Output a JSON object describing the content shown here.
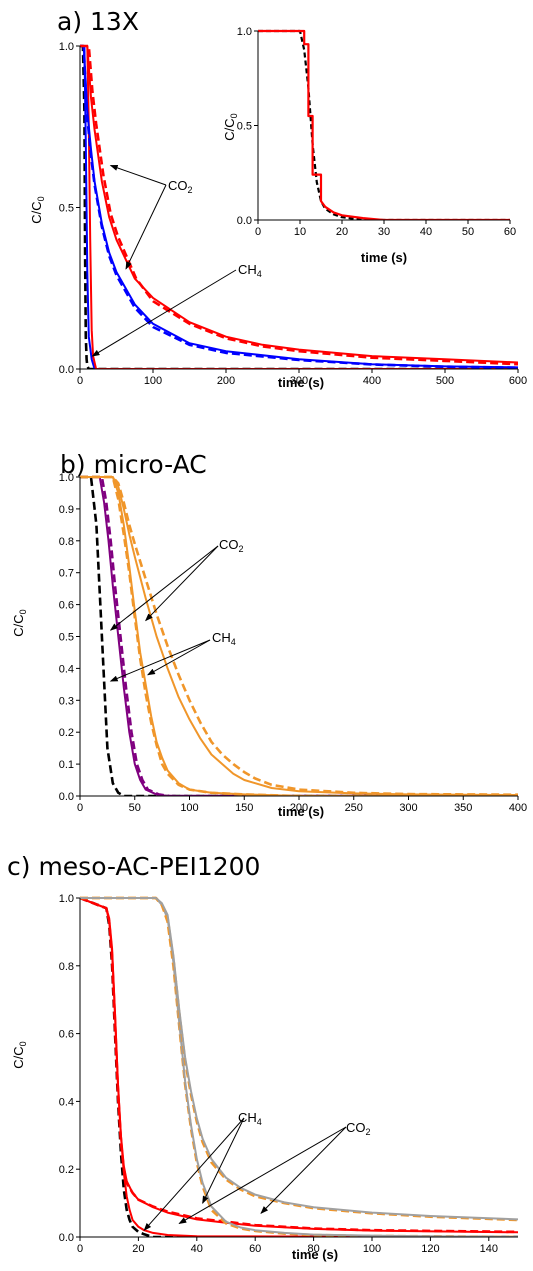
{
  "chart_data": [
    {
      "id": "a",
      "type": "line",
      "title": "a) 13X",
      "xlabel": "time (s)",
      "ylabel": "C/C0",
      "xlim": [
        0,
        600
      ],
      "ylim": [
        0,
        1.0
      ],
      "xticks": [
        0,
        100,
        200,
        300,
        400,
        500,
        600
      ],
      "yticks": [
        0.0,
        0.5,
        1.0
      ],
      "tick_decimals": 1,
      "grid": false,
      "annotations": [
        {
          "label": "CO",
          "sub": "2",
          "arrows_to": [
            [
              42,
              0.63
            ],
            [
              63,
              0.31
            ]
          ]
        },
        {
          "label": "CH",
          "sub": "4",
          "arrows_to": [
            [
              17,
              0.04
            ]
          ]
        }
      ],
      "series": [
        {
          "color": "#000000",
          "dash": true,
          "x": [
            0,
            4,
            6,
            7,
            8,
            9,
            10,
            12,
            16,
            600
          ],
          "y": [
            1.0,
            1.0,
            0.8,
            0.35,
            0.1,
            0.03,
            0.01,
            0.0,
            0.0,
            0.0
          ]
        },
        {
          "color": "#0000ff",
          "dash": false,
          "x": [
            0,
            6,
            8,
            10,
            12,
            16,
            20,
            600
          ],
          "y": [
            1.0,
            1.0,
            0.7,
            0.3,
            0.1,
            0.03,
            0.0,
            0.0
          ]
        },
        {
          "color": "#ff0000",
          "dash": false,
          "x": [
            0,
            10,
            12,
            14,
            16,
            18,
            22,
            600
          ],
          "y": [
            1.0,
            1.0,
            0.75,
            0.4,
            0.12,
            0.04,
            0.0,
            0.0
          ]
        },
        {
          "color": "#0000ff",
          "dash": false,
          "x": [
            0,
            5,
            8,
            10,
            15,
            20,
            30,
            40,
            50,
            75,
            100,
            150,
            200,
            300,
            400,
            500,
            600
          ],
          "y": [
            1.0,
            1.0,
            0.88,
            0.8,
            0.68,
            0.58,
            0.45,
            0.36,
            0.3,
            0.2,
            0.14,
            0.08,
            0.055,
            0.03,
            0.015,
            0.008,
            0.005
          ]
        },
        {
          "color": "#0000ff",
          "dash": true,
          "x": [
            0,
            5,
            8,
            10,
            15,
            20,
            30,
            40,
            50,
            75,
            100,
            150,
            200,
            300,
            400,
            500,
            600
          ],
          "y": [
            1.0,
            1.0,
            0.86,
            0.78,
            0.66,
            0.57,
            0.44,
            0.35,
            0.29,
            0.19,
            0.13,
            0.075,
            0.05,
            0.028,
            0.014,
            0.007,
            0.004
          ]
        },
        {
          "color": "#ff0000",
          "dash": false,
          "x": [
            0,
            10,
            15,
            20,
            30,
            40,
            50,
            75,
            100,
            150,
            200,
            250,
            300,
            400,
            500,
            600
          ],
          "y": [
            1.0,
            1.0,
            0.84,
            0.74,
            0.58,
            0.47,
            0.4,
            0.28,
            0.22,
            0.145,
            0.1,
            0.075,
            0.06,
            0.04,
            0.03,
            0.02
          ]
        },
        {
          "color": "#ff0000",
          "dash": true,
          "x": [
            0,
            12,
            17,
            22,
            32,
            42,
            52,
            77,
            100,
            150,
            200,
            250,
            300,
            400,
            500,
            600
          ],
          "y": [
            1.0,
            1.0,
            0.86,
            0.76,
            0.6,
            0.48,
            0.41,
            0.28,
            0.21,
            0.14,
            0.095,
            0.07,
            0.055,
            0.035,
            0.025,
            0.015
          ]
        }
      ]
    },
    {
      "id": "a-inset",
      "type": "line",
      "title": "",
      "xlabel": "time (s)",
      "ylabel": "C/C0",
      "xlim": [
        0,
        60
      ],
      "ylim": [
        0,
        1.0
      ],
      "xticks": [
        0,
        10,
        20,
        30,
        40,
        50,
        60
      ],
      "yticks": [
        0.0,
        0.5,
        1.0
      ],
      "tick_decimals": 1,
      "grid": false,
      "series": [
        {
          "color": "#000000",
          "dash": true,
          "x": [
            0,
            10,
            11,
            12,
            13,
            14,
            15,
            16,
            18,
            20,
            25,
            60
          ],
          "y": [
            1.0,
            1.0,
            0.9,
            0.7,
            0.4,
            0.2,
            0.1,
            0.06,
            0.03,
            0.015,
            0.0,
            0.0
          ]
        },
        {
          "color": "#ff0000",
          "dash": false,
          "x": [
            0,
            11,
            11,
            12,
            12,
            13,
            13,
            15,
            15,
            16,
            18,
            20,
            25,
            30,
            60
          ],
          "y": [
            1.0,
            1.0,
            0.93,
            0.93,
            0.55,
            0.55,
            0.24,
            0.24,
            0.1,
            0.07,
            0.04,
            0.025,
            0.01,
            0.0,
            0.0
          ]
        }
      ]
    },
    {
      "id": "b",
      "type": "line",
      "title": "b) micro-AC",
      "xlabel": "time (s)",
      "ylabel": "C/C0",
      "xlim": [
        0,
        400
      ],
      "ylim": [
        0,
        1.0
      ],
      "xticks": [
        0,
        50,
        100,
        150,
        200,
        250,
        300,
        350,
        400
      ],
      "yticks": [
        0.0,
        0.1,
        0.2,
        0.3,
        0.4,
        0.5,
        0.6,
        0.7,
        0.8,
        0.9,
        1.0
      ],
      "tick_decimals": 1,
      "grid": false,
      "annotations": [
        {
          "label": "CO",
          "sub": "2",
          "arrows_to": [
            [
              60,
              0.55
            ],
            [
              28,
              0.52
            ]
          ]
        },
        {
          "label": "CH",
          "sub": "4",
          "arrows_to": [
            [
              62,
              0.38
            ],
            [
              28,
              0.36
            ]
          ]
        }
      ],
      "series": [
        {
          "color": "#000000",
          "dash": true,
          "x": [
            0,
            10,
            15,
            20,
            25,
            30,
            35,
            40,
            400
          ],
          "y": [
            1.0,
            1.0,
            0.85,
            0.5,
            0.15,
            0.04,
            0.01,
            0.0,
            0.0
          ]
        },
        {
          "color": "#800080",
          "dash": false,
          "x": [
            0,
            18,
            22,
            26,
            30,
            35,
            40,
            45,
            50,
            55,
            60,
            70,
            80,
            400
          ],
          "y": [
            1.0,
            1.0,
            0.92,
            0.8,
            0.66,
            0.5,
            0.34,
            0.2,
            0.1,
            0.05,
            0.02,
            0.005,
            0.0,
            0.0
          ]
        },
        {
          "color": "#800080",
          "dash": true,
          "x": [
            0,
            20,
            24,
            28,
            32,
            37,
            42,
            47,
            52,
            57,
            62,
            72,
            82,
            400
          ],
          "y": [
            1.0,
            1.0,
            0.92,
            0.8,
            0.66,
            0.5,
            0.34,
            0.2,
            0.1,
            0.05,
            0.02,
            0.005,
            0.0,
            0.0
          ]
        },
        {
          "color": "#f0962a",
          "dash": false,
          "x": [
            0,
            30,
            35,
            40,
            45,
            50,
            55,
            60,
            65,
            70,
            75,
            80,
            90,
            100,
            120,
            150,
            200,
            400
          ],
          "y": [
            1.0,
            1.0,
            0.95,
            0.85,
            0.72,
            0.58,
            0.45,
            0.35,
            0.25,
            0.17,
            0.12,
            0.08,
            0.04,
            0.02,
            0.01,
            0.005,
            0.0,
            0.0
          ]
        },
        {
          "color": "#f0962a",
          "dash": true,
          "x": [
            0,
            30,
            35,
            40,
            45,
            50,
            55,
            60,
            65,
            70,
            75,
            80,
            90,
            100,
            120,
            150,
            200,
            400
          ],
          "y": [
            1.0,
            1.0,
            0.93,
            0.82,
            0.7,
            0.56,
            0.43,
            0.32,
            0.23,
            0.16,
            0.1,
            0.07,
            0.035,
            0.02,
            0.01,
            0.005,
            0.0,
            0.0
          ]
        },
        {
          "color": "#f0962a",
          "dash": false,
          "x": [
            0,
            30,
            35,
            40,
            45,
            50,
            60,
            70,
            80,
            90,
            100,
            110,
            120,
            130,
            140,
            150,
            160,
            175,
            200,
            250,
            300,
            400
          ],
          "y": [
            1.0,
            1.0,
            0.97,
            0.9,
            0.82,
            0.75,
            0.62,
            0.5,
            0.4,
            0.31,
            0.24,
            0.18,
            0.13,
            0.1,
            0.07,
            0.05,
            0.04,
            0.025,
            0.015,
            0.008,
            0.005,
            0.003
          ]
        },
        {
          "color": "#f0962a",
          "dash": true,
          "x": [
            0,
            30,
            35,
            40,
            45,
            50,
            60,
            70,
            80,
            90,
            100,
            110,
            120,
            130,
            140,
            150,
            160,
            175,
            200,
            250,
            300,
            400
          ],
          "y": [
            1.0,
            1.0,
            0.98,
            0.92,
            0.85,
            0.79,
            0.68,
            0.57,
            0.47,
            0.38,
            0.3,
            0.23,
            0.17,
            0.13,
            0.1,
            0.075,
            0.055,
            0.035,
            0.02,
            0.01,
            0.006,
            0.004
          ]
        }
      ]
    },
    {
      "id": "c",
      "type": "line",
      "title": "c) meso-AC-PEI1200",
      "xlabel": "time (s)",
      "ylabel": "C/C0",
      "xlim": [
        0,
        150
      ],
      "ylim": [
        0,
        1.0
      ],
      "xticks": [
        0,
        20,
        40,
        60,
        80,
        100,
        120,
        140
      ],
      "yticks": [
        0.0,
        0.2,
        0.4,
        0.6,
        0.8,
        1.0
      ],
      "tick_decimals": 1,
      "grid": false,
      "annotations": [
        {
          "label": "CH",
          "sub": "4",
          "arrows_to": [
            [
              22,
              0.02
            ],
            [
              42,
              0.1
            ]
          ]
        },
        {
          "label": "CO",
          "sub": "2",
          "arrows_to": [
            [
              34,
              0.04
            ],
            [
              62,
              0.07
            ]
          ]
        }
      ],
      "series": [
        {
          "color": "#000000",
          "dash": true,
          "x": [
            0,
            9,
            10,
            11,
            12,
            13,
            14,
            15,
            16,
            17,
            18,
            20,
            22,
            25,
            150
          ],
          "y": [
            1.0,
            0.97,
            0.92,
            0.8,
            0.6,
            0.4,
            0.25,
            0.14,
            0.08,
            0.05,
            0.03,
            0.015,
            0.008,
            0.0,
            0.0
          ]
        },
        {
          "color": "#ff0000",
          "dash": false,
          "x": [
            0,
            9,
            10,
            11,
            12,
            13,
            14,
            15,
            16,
            17,
            18,
            20,
            22,
            25,
            30,
            40,
            150
          ],
          "y": [
            1.0,
            0.97,
            0.93,
            0.84,
            0.66,
            0.45,
            0.3,
            0.19,
            0.12,
            0.08,
            0.05,
            0.03,
            0.02,
            0.012,
            0.006,
            0.002,
            0.0
          ]
        },
        {
          "color": "#ff0000",
          "dash": true,
          "x": [
            0,
            9,
            10,
            11,
            12,
            13,
            14,
            15,
            16,
            18,
            20,
            25,
            30,
            40,
            50,
            60,
            80,
            100,
            150
          ],
          "y": [
            1.0,
            0.97,
            0.93,
            0.82,
            0.62,
            0.42,
            0.28,
            0.2,
            0.16,
            0.13,
            0.11,
            0.09,
            0.075,
            0.055,
            0.045,
            0.035,
            0.025,
            0.02,
            0.015
          ]
        },
        {
          "color": "#ff0000",
          "dash": false,
          "x": [
            0,
            9,
            10,
            11,
            12,
            13,
            14,
            15,
            16,
            18,
            20,
            25,
            30,
            40,
            50,
            60,
            80,
            100,
            150
          ],
          "y": [
            1.0,
            0.97,
            0.94,
            0.85,
            0.66,
            0.45,
            0.3,
            0.21,
            0.165,
            0.13,
            0.11,
            0.088,
            0.072,
            0.052,
            0.042,
            0.033,
            0.024,
            0.019,
            0.014
          ]
        },
        {
          "color": "#f0962a",
          "dash": true,
          "x": [
            0,
            26,
            28,
            30,
            32,
            34,
            36,
            38,
            40,
            42,
            45,
            50,
            55,
            60,
            70,
            80,
            100,
            120,
            150
          ],
          "y": [
            1.0,
            1.0,
            0.98,
            0.93,
            0.8,
            0.62,
            0.45,
            0.32,
            0.22,
            0.15,
            0.08,
            0.04,
            0.025,
            0.018,
            0.01,
            0.006,
            0.003,
            0.002,
            0.0
          ]
        },
        {
          "color": "#a0a0a0",
          "dash": false,
          "x": [
            0,
            26,
            28,
            30,
            32,
            34,
            36,
            38,
            40,
            42,
            45,
            50,
            55,
            60,
            70,
            80,
            100,
            120,
            150
          ],
          "y": [
            1.0,
            1.0,
            0.98,
            0.94,
            0.81,
            0.63,
            0.46,
            0.33,
            0.23,
            0.16,
            0.09,
            0.045,
            0.028,
            0.02,
            0.012,
            0.007,
            0.004,
            0.002,
            0.0
          ]
        },
        {
          "color": "#f0962a",
          "dash": true,
          "x": [
            0,
            26,
            28,
            30,
            32,
            34,
            36,
            38,
            40,
            42,
            45,
            50,
            55,
            60,
            70,
            80,
            100,
            120,
            150
          ],
          "y": [
            1.0,
            1.0,
            0.98,
            0.94,
            0.82,
            0.66,
            0.52,
            0.42,
            0.34,
            0.28,
            0.22,
            0.17,
            0.14,
            0.12,
            0.1,
            0.085,
            0.07,
            0.06,
            0.05
          ]
        },
        {
          "color": "#a0a0a0",
          "dash": false,
          "x": [
            0,
            26,
            28,
            30,
            32,
            34,
            36,
            38,
            40,
            42,
            45,
            50,
            55,
            60,
            70,
            80,
            100,
            120,
            150
          ],
          "y": [
            1.0,
            1.0,
            0.985,
            0.95,
            0.83,
            0.67,
            0.53,
            0.43,
            0.35,
            0.29,
            0.23,
            0.175,
            0.145,
            0.125,
            0.102,
            0.088,
            0.072,
            0.062,
            0.052
          ]
        }
      ]
    }
  ]
}
